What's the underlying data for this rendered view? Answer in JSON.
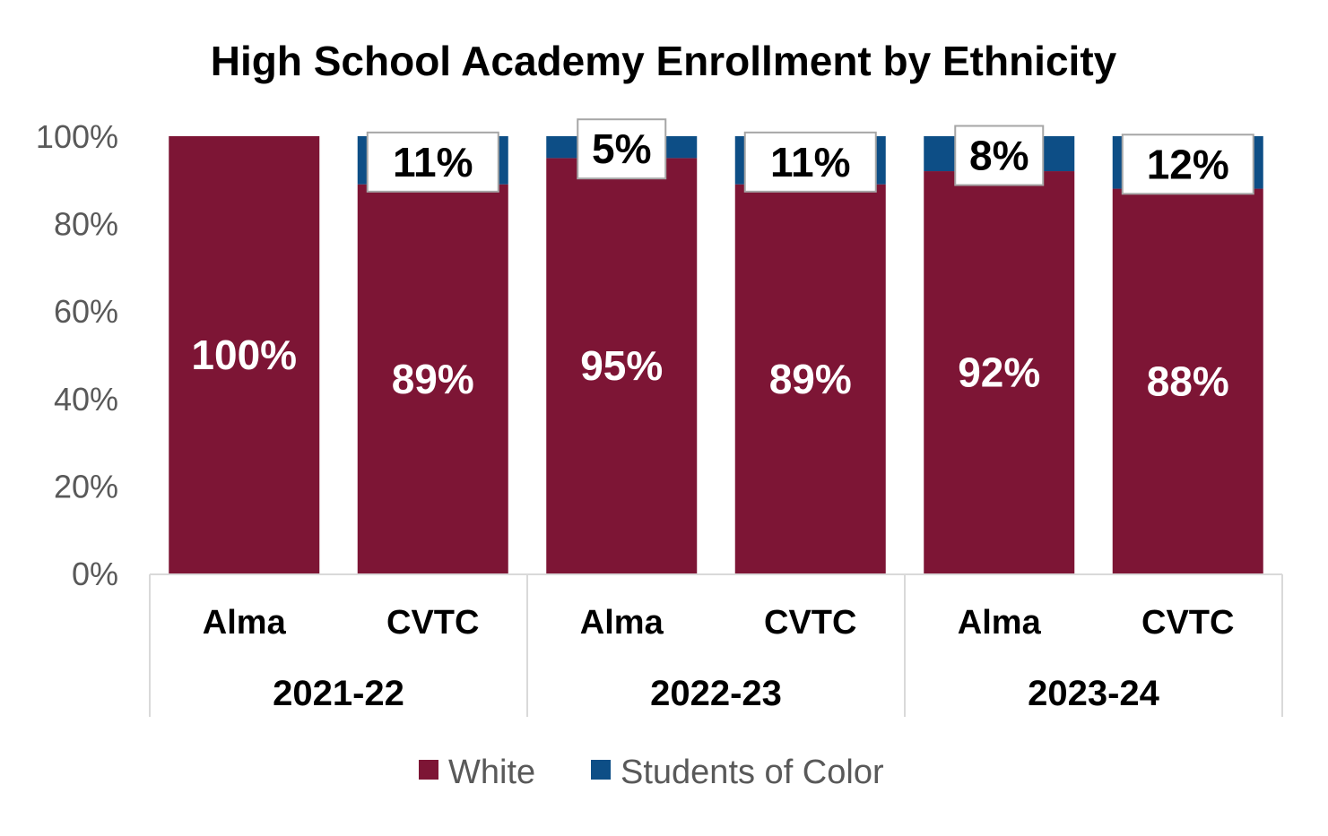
{
  "chart_data": {
    "type": "bar",
    "stacked": true,
    "percent": true,
    "title": "High School Academy Enrollment by Ethnicity",
    "categories": [
      "Alma",
      "CVTC",
      "Alma",
      "CVTC",
      "Alma",
      "CVTC"
    ],
    "groups": [
      {
        "label": "2021-22",
        "span": 2
      },
      {
        "label": "2022-23",
        "span": 2
      },
      {
        "label": "2023-24",
        "span": 2
      }
    ],
    "series": [
      {
        "name": "White",
        "color": "#7D1535",
        "values": [
          100,
          89,
          95,
          89,
          92,
          88
        ],
        "labels": [
          "100%",
          "89%",
          "95%",
          "89%",
          "92%",
          "88%"
        ]
      },
      {
        "name": "Students of Color",
        "color": "#0D4E86",
        "values": [
          0,
          11,
          5,
          11,
          8,
          12
        ],
        "labels": [
          "",
          "11%",
          "5%",
          "11%",
          "8%",
          "12%"
        ]
      }
    ],
    "yticks": [
      "0%",
      "20%",
      "40%",
      "60%",
      "80%",
      "100%"
    ],
    "ylim": [
      0,
      100
    ],
    "grid": false,
    "legend": [
      "White",
      "Students of Color"
    ],
    "legend_position": "bottom",
    "colors": {
      "axis": "#D9D9D9",
      "label_box_border": "#A6A6A6"
    }
  }
}
